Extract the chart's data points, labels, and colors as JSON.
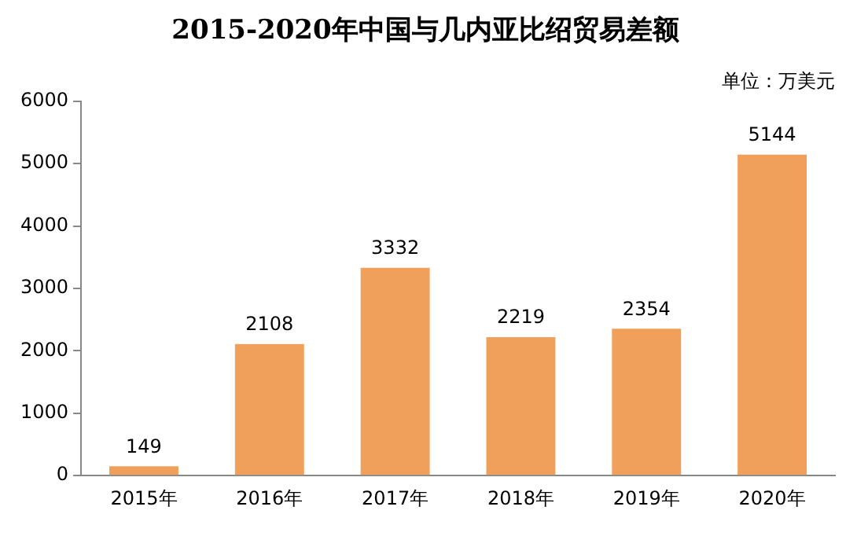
{
  "chart_data": {
    "type": "bar",
    "title": "2015-2020年中国与几内亚比绍贸易差额",
    "categories": [
      "2015年",
      "2016年",
      "2017年",
      "2018年",
      "2019年",
      "2020年"
    ],
    "values": [
      149,
      2108,
      3332,
      2219,
      2354,
      5144
    ],
    "color": "#f0a05a",
    "ylim": [
      0,
      6000
    ],
    "yticks": [
      0,
      1000,
      2000,
      3000,
      4000,
      5000,
      6000
    ],
    "grid": false,
    "data_labels": true,
    "legend": false,
    "annotations": [
      "单位：万美元"
    ]
  }
}
